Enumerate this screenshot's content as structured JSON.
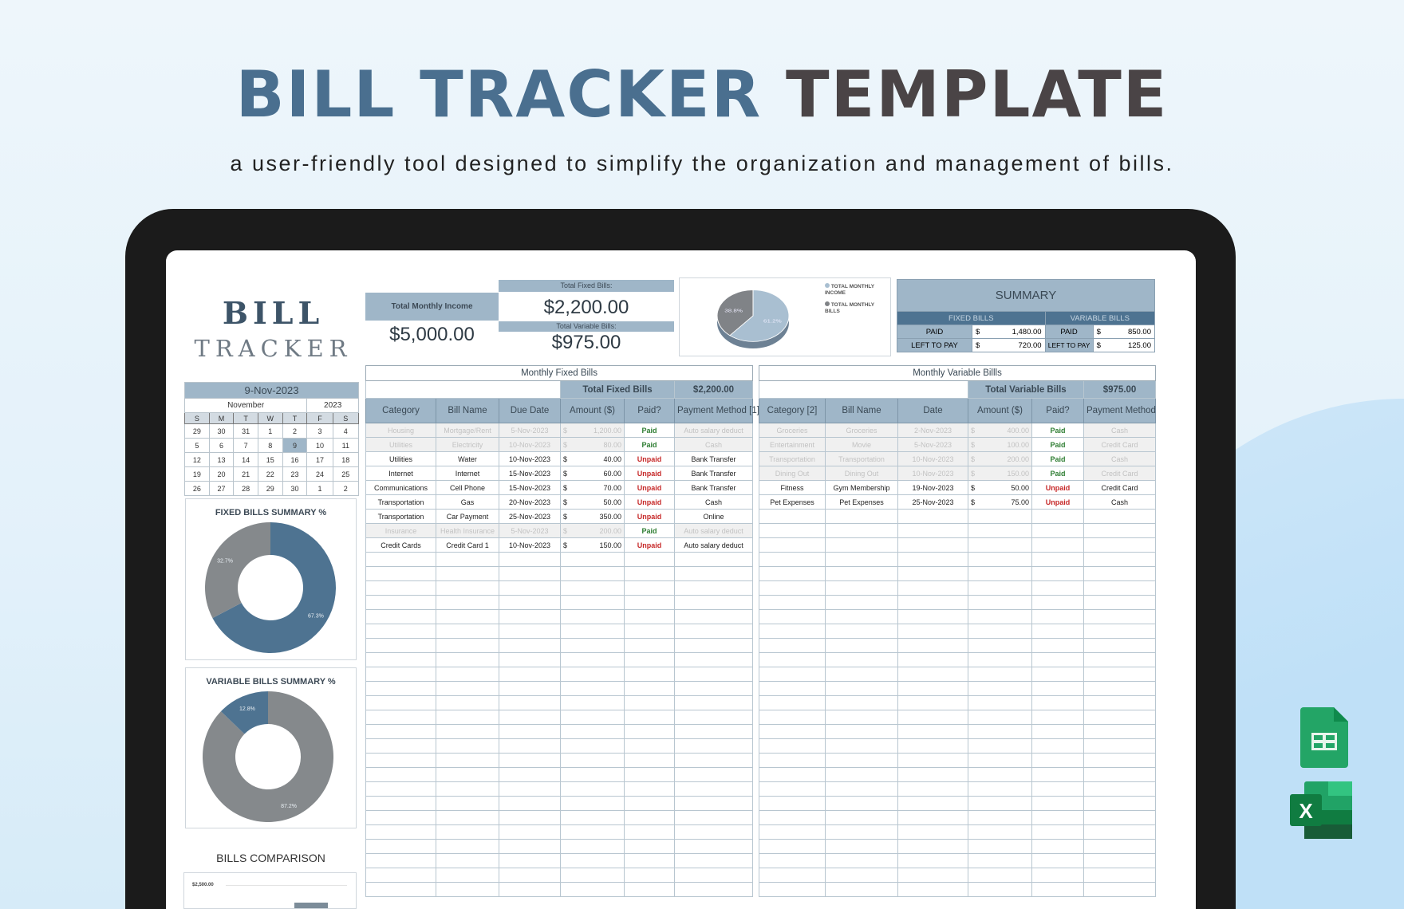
{
  "header": {
    "title_part1": "BILL TRACKER",
    "title_part2": "TEMPLATE",
    "subtitle": "a user-friendly tool designed to simplify the organization and management of bills."
  },
  "logo": {
    "line1": "BILL",
    "line2": "TRACKER"
  },
  "income": {
    "label": "Total Monthly Income",
    "value": "$5,000.00"
  },
  "fixed_total": {
    "label": "Total Fixed Bills:",
    "value": "$2,200.00"
  },
  "variable_total": {
    "label": "Total Variable Bills:",
    "value": "$975.00"
  },
  "summary": {
    "title": "SUMMARY",
    "fixed_label": "FIXED BILLS",
    "variable_label": "VARIABLE BILLS",
    "paid": "PAID",
    "left": "LEFT TO PAY",
    "currency": "$",
    "fixed_paid": "1,480.00",
    "fixed_left": "720.00",
    "variable_paid": "850.00",
    "variable_left": "125.00"
  },
  "calendar": {
    "date": "9-Nov-2023",
    "month": "November",
    "year": "2023",
    "weekdays": [
      "S",
      "M",
      "T",
      "W",
      "T",
      "F",
      "S"
    ],
    "weeks": [
      [
        "29",
        "30",
        "31",
        "1",
        "2",
        "3",
        "4"
      ],
      [
        "5",
        "6",
        "7",
        "8",
        "9",
        "10",
        "11"
      ],
      [
        "12",
        "13",
        "14",
        "15",
        "16",
        "17",
        "18"
      ],
      [
        "19",
        "20",
        "21",
        "22",
        "23",
        "24",
        "25"
      ],
      [
        "26",
        "27",
        "28",
        "29",
        "30",
        "1",
        "2"
      ]
    ],
    "selected": "9"
  },
  "fixed_table": {
    "title": "Monthly Fixed Bills",
    "total_label": "Total Fixed Bills",
    "total_value": "$2,200.00",
    "columns": [
      "Category",
      "Bill Name",
      "Due Date",
      "Amount ($)",
      "Paid?",
      "Payment Method [1]"
    ],
    "rows": [
      [
        "Housing",
        "Mortgage/Rent",
        "5-Nov-2023",
        "1,200.00",
        "Paid",
        "Auto salary deduct"
      ],
      [
        "Utilities",
        "Electricity",
        "10-Nov-2023",
        "80.00",
        "Paid",
        "Cash"
      ],
      [
        "Utilities",
        "Water",
        "10-Nov-2023",
        "40.00",
        "Unpaid",
        "Bank Transfer"
      ],
      [
        "Internet",
        "Internet",
        "15-Nov-2023",
        "60.00",
        "Unpaid",
        "Bank Transfer"
      ],
      [
        "Communications",
        "Cell Phone",
        "15-Nov-2023",
        "70.00",
        "Unpaid",
        "Bank Transfer"
      ],
      [
        "Transportation",
        "Gas",
        "20-Nov-2023",
        "50.00",
        "Unpaid",
        "Cash"
      ],
      [
        "Transportation",
        "Car Payment",
        "25-Nov-2023",
        "350.00",
        "Unpaid",
        "Online"
      ],
      [
        "Insurance",
        "Health Insurance",
        "5-Nov-2023",
        "200.00",
        "Paid",
        "Auto salary deduct"
      ],
      [
        "Credit Cards",
        "Credit Card 1",
        "10-Nov-2023",
        "150.00",
        "Unpaid",
        "Auto salary deduct"
      ]
    ]
  },
  "variable_table": {
    "title": "Monthly Variable Billls",
    "total_label": "Total Variable Bills",
    "total_value": "$975.00",
    "columns": [
      "Category [2]",
      "Bill Name",
      "Date",
      "Amount ($)",
      "Paid?",
      "Payment Method"
    ],
    "rows": [
      [
        "Groceries",
        "Groceries",
        "2-Nov-2023",
        "400.00",
        "Paid",
        "Cash"
      ],
      [
        "Entertainment",
        "Movie",
        "5-Nov-2023",
        "100.00",
        "Paid",
        "Credit Card"
      ],
      [
        "Transportation",
        "Transportation",
        "10-Nov-2023",
        "200.00",
        "Paid",
        "Cash"
      ],
      [
        "Dining Out",
        "Dining Out",
        "10-Nov-2023",
        "150.00",
        "Paid",
        "Credit Card"
      ],
      [
        "Fitness",
        "Gym Membership",
        "19-Nov-2023",
        "50.00",
        "Unpaid",
        "Credit Card"
      ],
      [
        "Pet Expenses",
        "Pet Expenses",
        "25-Nov-2023",
        "75.00",
        "Unpaid",
        "Cash"
      ]
    ]
  },
  "colors": {
    "accent_blue": "#4e7391",
    "header_blue": "#9fb6c8",
    "gray": "#85898c",
    "light_blue": "#a9bfd1",
    "paid": "#2e7d32",
    "unpaid": "#c62828"
  },
  "chart_data": [
    {
      "type": "pie",
      "id": "income_vs_bills",
      "labels": [
        "TOTAL MONTHLY INCOME",
        "TOTAL MONTHLY BILLS"
      ],
      "values": [
        61.2,
        38.8
      ],
      "data_labels": [
        "61.2%",
        "38.8%"
      ],
      "colors": [
        "#a9bfd1",
        "#808387"
      ],
      "legend": "right"
    },
    {
      "type": "pie",
      "id": "fixed_summary",
      "title": "FIXED BILLS SUMMARY %",
      "values": [
        67.3,
        32.7
      ],
      "data_labels": [
        "67.3%",
        "32.7%"
      ],
      "colors": [
        "#4e7391",
        "#85898c"
      ],
      "donut": true
    },
    {
      "type": "pie",
      "id": "variable_summary",
      "title": "VARIABLE BILLS SUMMARY %",
      "values": [
        87.2,
        12.8
      ],
      "data_labels": [
        "87.2%",
        "12.8%"
      ],
      "colors": [
        "#85898c",
        "#4e7391"
      ],
      "donut": true
    },
    {
      "type": "bar",
      "id": "bills_comparison",
      "title": "BILLS COMPARISON",
      "y_ticks": [
        "$2,500.00"
      ],
      "grid": true
    }
  ],
  "icons": {
    "sheets": "google-sheets-icon",
    "excel": "excel-icon"
  }
}
